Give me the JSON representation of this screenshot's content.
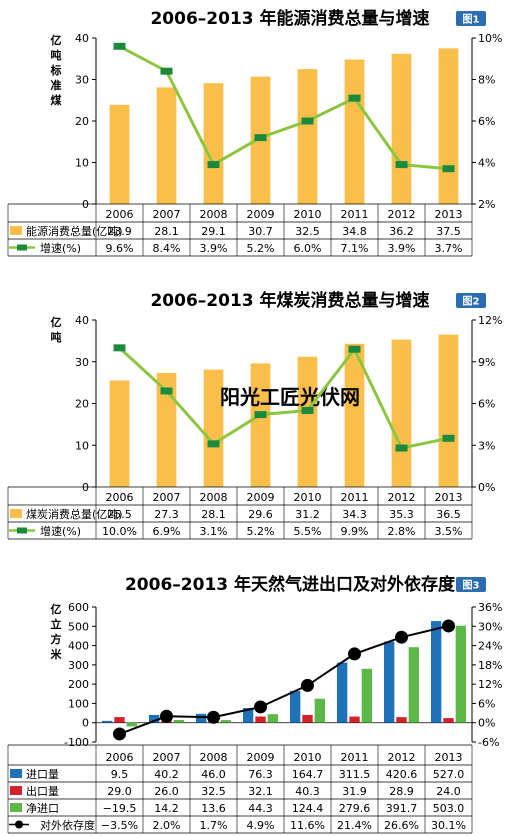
{
  "chart_data": [
    {
      "type": "bar",
      "title": "2006–2013 年能源消费总量与增速",
      "badge": "图1",
      "ylabel": "亿吨标准煤",
      "categories": [
        "2006",
        "2007",
        "2008",
        "2009",
        "2010",
        "2011",
        "2012",
        "2013"
      ],
      "ylim": [
        0,
        40
      ],
      "yticks": [
        "0",
        "10",
        "20",
        "30",
        "40"
      ],
      "y2lim": [
        2,
        10
      ],
      "y2ticks": [
        "2%",
        "4%",
        "6%",
        "8%",
        "10%"
      ],
      "series": [
        {
          "name": "能源消费总量(亿吨)",
          "type": "bar",
          "axis": "left",
          "color": "#f9bf4a",
          "values": [
            23.9,
            28.1,
            29.1,
            30.7,
            32.5,
            34.8,
            36.2,
            37.5
          ],
          "labels": [
            "23.9",
            "28.1",
            "29.1",
            "30.7",
            "32.5",
            "34.8",
            "36.2",
            "37.5"
          ]
        },
        {
          "name": "增速(%)",
          "type": "line",
          "axis": "right",
          "color": "#8cc63f",
          "marker": "#1c8a3c",
          "values": [
            9.6,
            8.4,
            3.9,
            5.2,
            6.0,
            7.1,
            3.9,
            3.7
          ],
          "labels": [
            "9.6%",
            "8.4%",
            "3.9%",
            "5.2%",
            "6.0%",
            "7.1%",
            "3.9%",
            "3.7%"
          ]
        }
      ]
    },
    {
      "type": "bar",
      "title": "2006–2013 年煤炭消费总量与增速",
      "badge": "图2",
      "ylabel": "亿吨",
      "categories": [
        "2006",
        "2007",
        "2008",
        "2009",
        "2010",
        "2011",
        "2012",
        "2013"
      ],
      "ylim": [
        0,
        40
      ],
      "yticks": [
        "0",
        "10",
        "20",
        "30",
        "40"
      ],
      "y2lim": [
        0,
        12
      ],
      "y2ticks": [
        "0%",
        "3%",
        "6%",
        "9%",
        "12%"
      ],
      "series": [
        {
          "name": "煤炭消费总量(亿吨)",
          "type": "bar",
          "axis": "left",
          "color": "#f9bf4a",
          "values": [
            25.5,
            27.3,
            28.1,
            29.6,
            31.2,
            34.3,
            35.3,
            36.5
          ],
          "labels": [
            "25.5",
            "27.3",
            "28.1",
            "29.6",
            "31.2",
            "34.3",
            "35.3",
            "36.5"
          ]
        },
        {
          "name": "增速(%)",
          "type": "line",
          "axis": "right",
          "color": "#8cc63f",
          "marker": "#1c8a3c",
          "values": [
            10.0,
            6.9,
            3.1,
            5.2,
            5.5,
            9.9,
            2.8,
            3.5
          ],
          "labels": [
            "10.0%",
            "6.9%",
            "3.1%",
            "5.2%",
            "5.5%",
            "9.9%",
            "2.8%",
            "3.5%"
          ]
        }
      ],
      "watermark": "阳光工匠光伏网"
    },
    {
      "type": "bar",
      "title": "2006–2013 年天然气进出口及对外依存度",
      "badge": "图3",
      "ylabel": "亿立方米",
      "categories": [
        "2006",
        "2007",
        "2008",
        "2009",
        "2010",
        "2011",
        "2012",
        "2013"
      ],
      "ylim": [
        -100,
        600
      ],
      "yticks": [
        "-100",
        "0",
        "100",
        "200",
        "300",
        "400",
        "500",
        "600"
      ],
      "y2lim": [
        -6,
        36
      ],
      "y2ticks": [
        "-6%",
        "0%",
        "6%",
        "12%",
        "18%",
        "24%",
        "30%",
        "36%"
      ],
      "series": [
        {
          "name": "进口量",
          "type": "bar",
          "axis": "left",
          "color": "#1f72b8",
          "values": [
            9.5,
            40.2,
            46.0,
            76.3,
            164.7,
            311.5,
            420.6,
            527.0
          ],
          "labels": [
            "9.5",
            "40.2",
            "46.0",
            "76.3",
            "164.7",
            "311.5",
            "420.6",
            "527.0"
          ]
        },
        {
          "name": "出口量",
          "type": "bar",
          "axis": "left",
          "color": "#d2232a",
          "values": [
            29.0,
            26.0,
            32.5,
            32.1,
            40.3,
            31.9,
            28.9,
            24.0
          ],
          "labels": [
            "29.0",
            "26.0",
            "32.5",
            "32.1",
            "40.3",
            "31.9",
            "28.9",
            "24.0"
          ]
        },
        {
          "name": "净进口",
          "type": "bar",
          "axis": "left",
          "color": "#5cb848",
          "values": [
            -19.5,
            14.2,
            13.6,
            44.3,
            124.4,
            279.6,
            391.7,
            503.0
          ],
          "labels": [
            "−19.5",
            "14.2",
            "13.6",
            "44.3",
            "124.4",
            "279.6",
            "391.7",
            "503.0"
          ]
        },
        {
          "name": "对外依存度",
          "type": "line",
          "axis": "right",
          "color": "#000000",
          "marker": "#000000",
          "values": [
            -3.5,
            2.0,
            1.7,
            4.9,
            11.6,
            21.4,
            26.6,
            30.1
          ],
          "labels": [
            "−3.5%",
            "2.0%",
            "1.7%",
            "4.9%",
            "11.6%",
            "21.4%",
            "26.6%",
            "30.1%"
          ]
        }
      ]
    }
  ]
}
